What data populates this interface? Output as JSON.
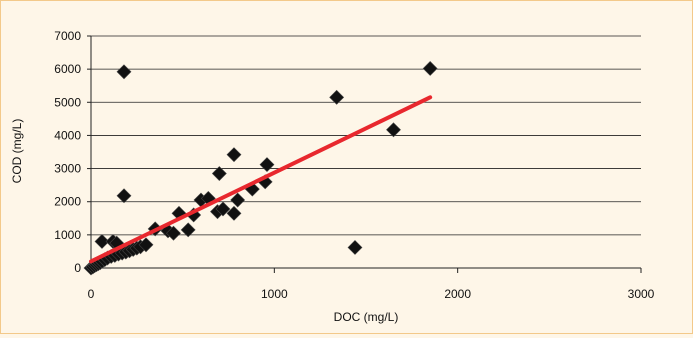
{
  "chart_data": {
    "type": "scatter",
    "xlabel": "DOC (mg/L)",
    "ylabel": "COD (mg/L)",
    "xlim": [
      0,
      3000
    ],
    "ylim": [
      0,
      7000
    ],
    "x_ticks": [
      0,
      1000,
      2000,
      3000
    ],
    "y_ticks": [
      0,
      1000,
      2000,
      3000,
      4000,
      5000,
      6000,
      7000
    ],
    "grid": "horizontal",
    "marker": "diamond",
    "marker_color": "#111111",
    "trendline_color": "#e8282e",
    "points": [
      [
        0,
        0
      ],
      [
        10,
        30
      ],
      [
        20,
        70
      ],
      [
        30,
        100
      ],
      [
        40,
        130
      ],
      [
        50,
        160
      ],
      [
        60,
        200
      ],
      [
        75,
        250
      ],
      [
        90,
        300
      ],
      [
        110,
        350
      ],
      [
        130,
        380
      ],
      [
        150,
        420
      ],
      [
        170,
        450
      ],
      [
        190,
        480
      ],
      [
        210,
        520
      ],
      [
        230,
        560
      ],
      [
        250,
        600
      ],
      [
        270,
        640
      ],
      [
        300,
        700
      ],
      [
        60,
        800
      ],
      [
        120,
        800
      ],
      [
        140,
        750
      ],
      [
        180,
        5920
      ],
      [
        180,
        2180
      ],
      [
        350,
        1180
      ],
      [
        420,
        1120
      ],
      [
        450,
        1050
      ],
      [
        480,
        1650
      ],
      [
        530,
        1150
      ],
      [
        560,
        1600
      ],
      [
        600,
        2050
      ],
      [
        640,
        2100
      ],
      [
        690,
        1700
      ],
      [
        700,
        2850
      ],
      [
        720,
        1780
      ],
      [
        780,
        3420
      ],
      [
        780,
        1650
      ],
      [
        800,
        2050
      ],
      [
        880,
        2380
      ],
      [
        950,
        2600
      ],
      [
        960,
        3120
      ],
      [
        1340,
        5150
      ],
      [
        1440,
        620
      ],
      [
        1650,
        4170
      ],
      [
        1850,
        6020
      ]
    ],
    "trendline": [
      [
        0,
        200
      ],
      [
        1850,
        5150
      ]
    ]
  }
}
